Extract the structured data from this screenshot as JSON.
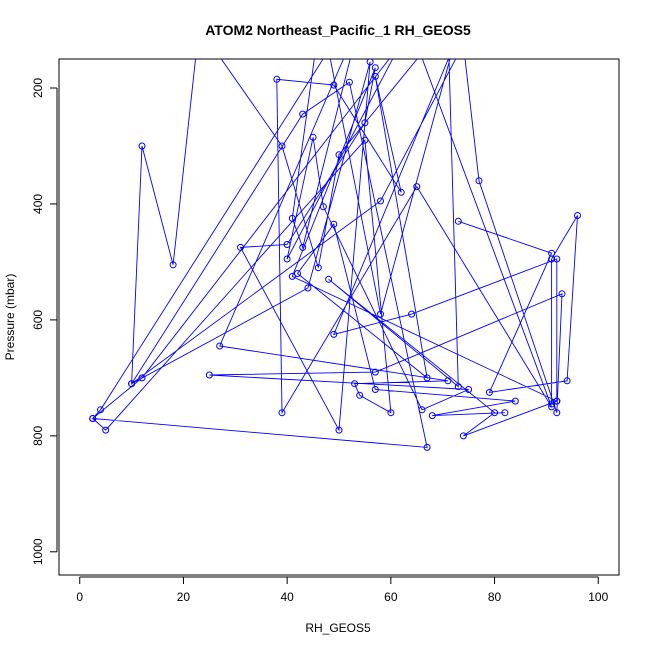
{
  "chart_data": {
    "type": "line",
    "title": "ATOM2 Northeast_Pacific_1 RH_GEOS5",
    "xlabel": "RH_GEOS5",
    "ylabel": "Pressure (mbar)",
    "xlim": [
      0,
      100
    ],
    "ylim": [
      1040,
      150
    ],
    "y_reversed": true,
    "grid": false,
    "legend": "none",
    "x_ticks": [
      0,
      20,
      40,
      60,
      80,
      100
    ],
    "y_ticks": [
      200,
      400,
      600,
      800,
      1000
    ],
    "series_color": "#0000ff",
    "series": [
      {
        "x": [
          73,
          91,
          79,
          94,
          96,
          91,
          91,
          92,
          74,
          80,
          48,
          73,
          71,
          50,
          46,
          39,
          23,
          18,
          12,
          10,
          43,
          52,
          67,
          2.5,
          4,
          48,
          58,
          72,
          49,
          64,
          92,
          92,
          41,
          57,
          55,
          40,
          31,
          50,
          56,
          44,
          10,
          58,
          74,
          77,
          92,
          93,
          57,
          25,
          75,
          66,
          47,
          45,
          40,
          63,
          46,
          41,
          43,
          54,
          27,
          71,
          53,
          54,
          60,
          55,
          5,
          2.5,
          12,
          64,
          91,
          65,
          39,
          38,
          49,
          62,
          57,
          67,
          42,
          49,
          57,
          84,
          68,
          82
        ],
        "y": [
          430,
          485,
          725,
          705,
          420,
          495,
          745,
          740,
          800,
          760,
          530,
          715,
          85,
          315,
          510,
          300,
          95,
          505,
          300,
          710,
          245,
          190,
          820,
          770,
          755,
          135,
          590,
          130,
          625,
          590,
          495,
          740,
          525,
          165,
          260,
          470,
          475,
          790,
          155,
          545,
          710,
          395,
          125,
          360,
          760,
          555,
          690,
          695,
          720,
          755,
          405,
          285,
          495,
          105,
          100,
          425,
          475,
          85,
          645,
          705,
          710,
          730,
          760,
          290,
          790,
          770,
          700,
          100,
          750,
          370,
          760,
          185,
          195,
          380,
          180,
          700,
          520,
          435,
          720,
          740,
          765,
          760
        ]
      }
    ]
  }
}
